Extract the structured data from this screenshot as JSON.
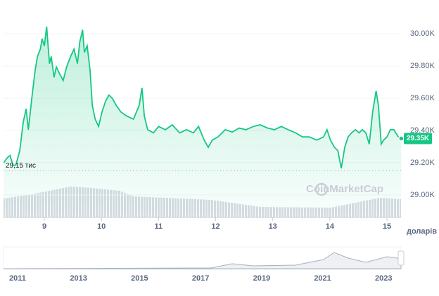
{
  "chart_data": {
    "type": "line",
    "series": [
      {
        "color": "#16c784",
        "x": [
          8.29,
          8.35,
          8.4,
          8.45,
          8.5,
          8.57,
          8.63,
          8.68,
          8.72,
          8.78,
          8.84,
          8.88,
          8.93,
          8.96,
          9.0,
          9.04,
          9.09,
          9.12,
          9.17,
          9.21,
          9.27,
          9.33,
          9.39,
          9.46,
          9.52,
          9.58,
          9.62,
          9.67,
          9.7,
          9.75,
          9.8,
          9.84,
          9.89,
          9.95,
          10.01,
          10.07,
          10.13,
          10.19,
          10.26,
          10.34,
          10.44,
          10.56,
          10.66,
          10.71,
          10.75,
          10.81,
          10.91,
          11.0,
          11.12,
          11.24,
          11.37,
          11.49,
          11.61,
          11.7,
          11.8,
          11.87,
          11.94,
          12.04,
          12.17,
          12.29,
          12.41,
          12.53,
          12.66,
          12.78,
          12.91,
          13.03,
          13.15,
          13.27,
          13.4,
          13.52,
          13.64,
          13.77,
          13.89,
          13.95,
          14.01,
          14.08,
          14.14,
          14.2,
          14.26,
          14.32,
          14.38,
          14.45,
          14.51,
          14.57,
          14.63,
          14.69,
          14.75,
          14.81,
          14.85,
          14.9,
          14.94,
          15.0,
          15.06,
          15.12,
          15.2,
          15.25
        ],
        "values": [
          29200,
          29230,
          29245,
          29185,
          29185,
          29275,
          29450,
          29535,
          29405,
          29600,
          29775,
          29860,
          29905,
          29970,
          29925,
          30045,
          29815,
          29860,
          29730,
          29795,
          29750,
          29710,
          29795,
          29860,
          29905,
          29815,
          29950,
          30025,
          29885,
          29925,
          29775,
          29555,
          29470,
          29425,
          29515,
          29580,
          29620,
          29600,
          29555,
          29515,
          29490,
          29470,
          29555,
          29665,
          29490,
          29405,
          29385,
          29425,
          29405,
          29435,
          29385,
          29405,
          29385,
          29425,
          29340,
          29295,
          29340,
          29360,
          29405,
          29390,
          29415,
          29405,
          29425,
          29435,
          29415,
          29405,
          29425,
          29405,
          29385,
          29360,
          29360,
          29340,
          29360,
          29405,
          29340,
          29295,
          29275,
          29165,
          29295,
          29360,
          29385,
          29405,
          29385,
          29405,
          29385,
          29315,
          29515,
          29645,
          29555,
          29315,
          29340,
          29360,
          29405,
          29405,
          29360,
          29350
        ]
      }
    ],
    "xlim": [
      8.285,
      15.246
    ],
    "xticks": [
      9,
      10,
      11,
      12,
      13,
      14,
      15
    ],
    "ylim": [
      28860,
      30210
    ],
    "yticks": [
      {
        "value": 29000,
        "label": "29.00K"
      },
      {
        "value": 29200,
        "label": "29.20K"
      },
      {
        "value": 29400,
        "label": "29.40K"
      },
      {
        "value": 29600,
        "label": "29.60K"
      },
      {
        "value": 29800,
        "label": "29.80K"
      },
      {
        "value": 30000,
        "label": "30.00K"
      }
    ],
    "annotations": [
      {
        "text": "29,15 тис",
        "value": 29150
      },
      {
        "text": "29.35K",
        "value": 29350
      }
    ],
    "y_unit": "доларів СШ",
    "watermark": "CoinMarketCap",
    "navigator": {
      "xlim": [
        2010.54,
        2023.57
      ],
      "xticks": [
        2011,
        2013,
        2015,
        2017,
        2019,
        2021,
        2023
      ]
    }
  }
}
